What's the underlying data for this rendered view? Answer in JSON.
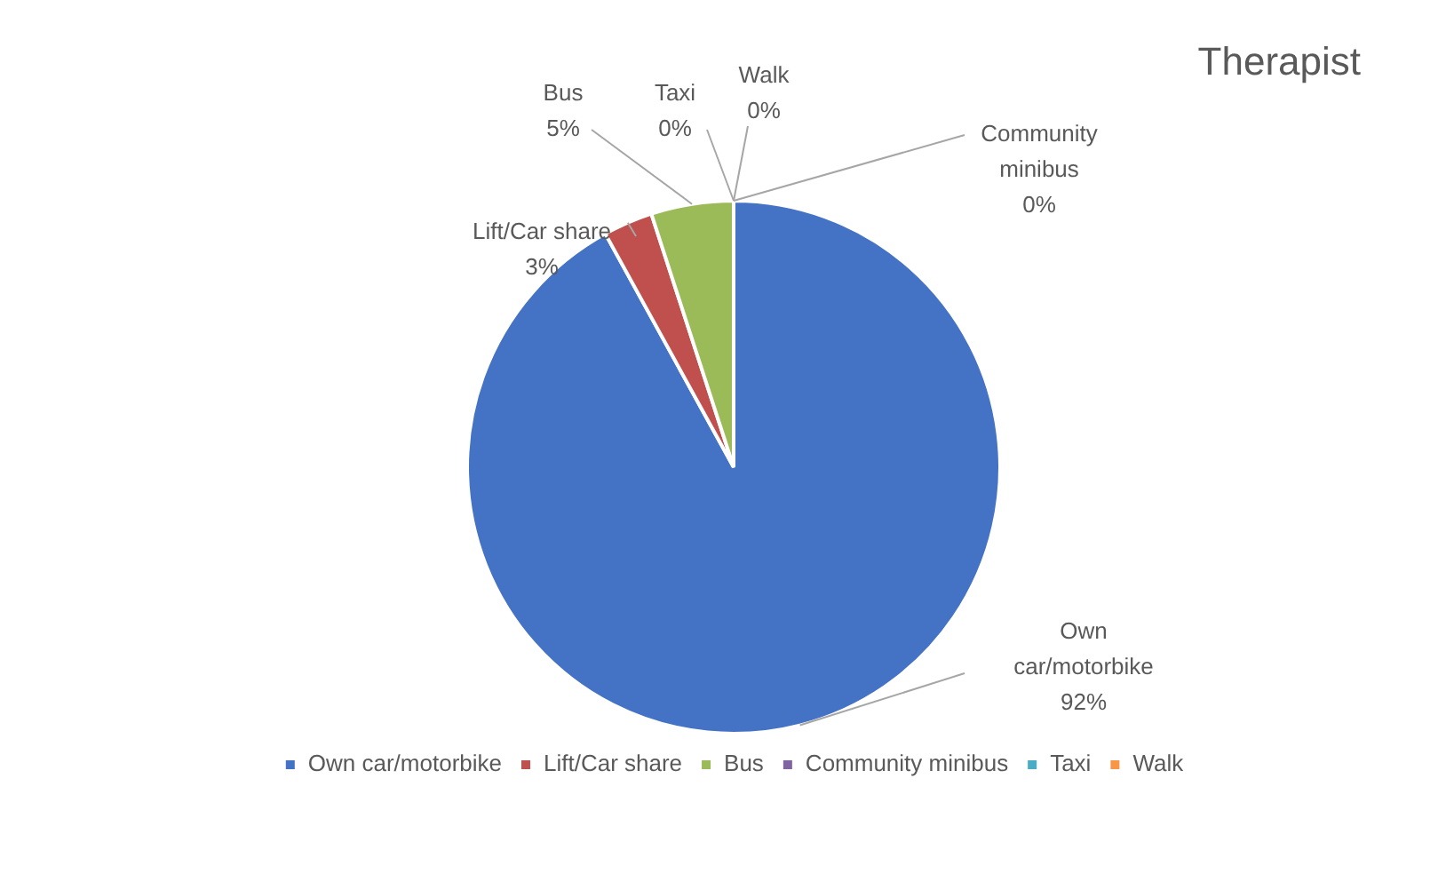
{
  "chart_data": {
    "type": "pie",
    "title": "Therapist",
    "categories": [
      "Own car/motorbike",
      "Lift/Car share",
      "Bus",
      "Community minibus",
      "Taxi",
      "Walk"
    ],
    "values": [
      92,
      3,
      5,
      0,
      0,
      0
    ],
    "colors": [
      "#4472c4",
      "#c0504d",
      "#9bbb59",
      "#8064a2",
      "#4bacc6",
      "#f79646"
    ],
    "value_labels": [
      "92%",
      "3%",
      "5%",
      "0%",
      "0%",
      "0%"
    ],
    "legend": "bottom"
  }
}
